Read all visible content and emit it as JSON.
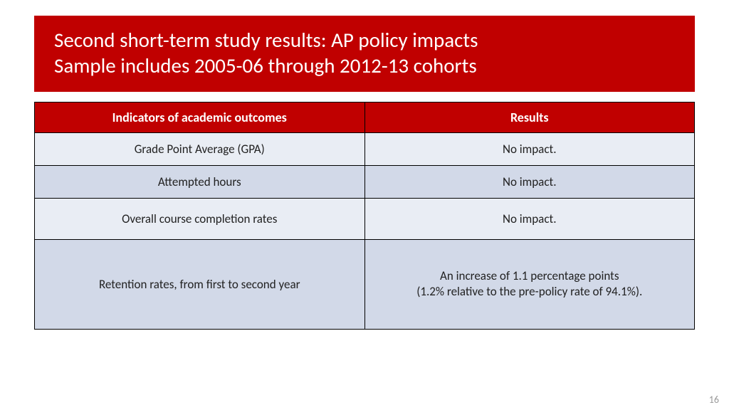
{
  "title": {
    "line1": "Second short-term study results: AP policy impacts",
    "line2": "Sample includes 2005-06 through 2012-13 cohorts"
  },
  "table": {
    "columns": [
      "Indicators of academic outcomes",
      "Results"
    ],
    "rows": [
      {
        "indicator": "Grade Point Average (GPA)",
        "result": "No impact.",
        "shade": "a",
        "height": "norm"
      },
      {
        "indicator": "Attempted hours",
        "result": "No impact.",
        "shade": "b",
        "height": "norm"
      },
      {
        "indicator": "Overall course completion rates",
        "result": "No impact.",
        "shade": "a",
        "height": "med"
      },
      {
        "indicator": "Retention rates, from first to second year",
        "result": "An increase of 1.1 percentage points\n(1.2% relative to the pre-policy rate of 94.1%).",
        "shade": "b",
        "height": "tall"
      }
    ],
    "header_bg": "#c00000",
    "header_fg": "#ffffff",
    "row_bg_a": "#e9edf4",
    "row_bg_b": "#d2d9e8",
    "border_color": "#000000",
    "header_fontsize": 18,
    "cell_fontsize": 17
  },
  "page_number": "16",
  "colors": {
    "banner_bg": "#c00000",
    "banner_fg": "#ffffff",
    "page_bg": "#ffffff",
    "pagenum_color": "#9a9a9a"
  }
}
